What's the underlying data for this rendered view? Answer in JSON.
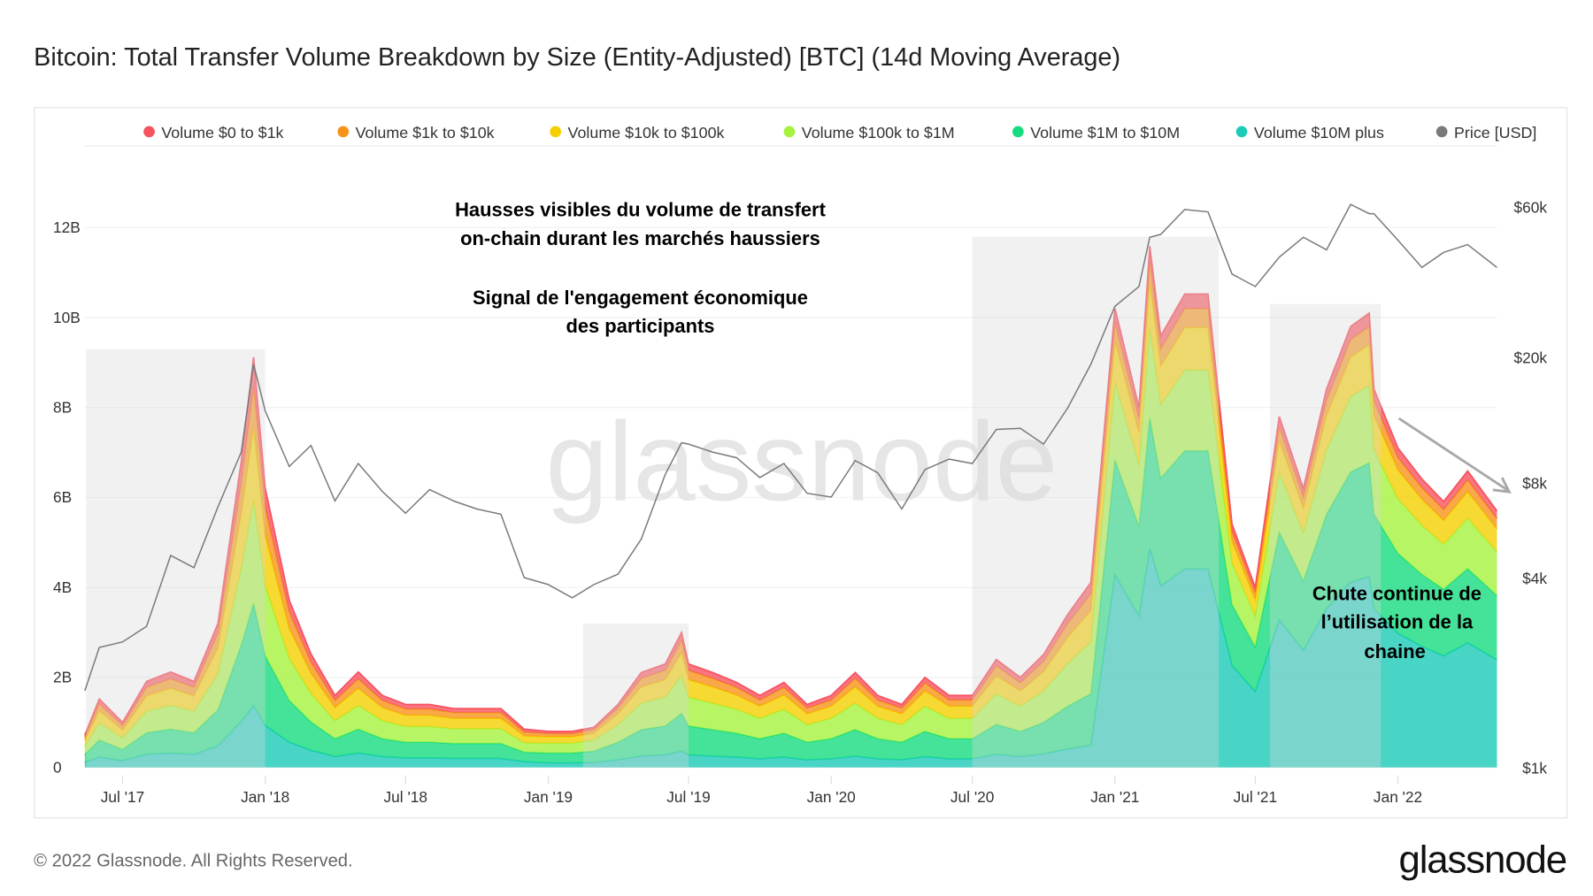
{
  "title": "Bitcoin: Total Transfer Volume Breakdown by Size (Entity-Adjusted) [BTC] (14d Moving Average)",
  "footer": {
    "copyright": "© 2022 Glassnode. All Rights Reserved.",
    "logo": "glassnode"
  },
  "watermark": "glassnode",
  "annotations": {
    "top_line1": "Hausses visibles du volume de transfert",
    "top_line2": "on-chain durant les marchés haussiers",
    "top_line3": "Signal de l'engagement économique",
    "top_line4": "des participants",
    "right_line1": "Chute continue de",
    "right_line2": "l’utilisation de la",
    "right_line3": "chaine"
  },
  "colors": {
    "v0_1k": "#f7525f",
    "v1k_10k": "#f7931a",
    "v10k_100k": "#f5cf00",
    "v100k_1m": "#a6f23f",
    "v1m_10m": "#16dc80",
    "v10m_plus": "#1ccbb8",
    "price": "#7a7a7a"
  },
  "chart_data": {
    "type": "area",
    "stacked": true,
    "title": "Bitcoin: Total Transfer Volume Breakdown by Size (Entity-Adjusted) [BTC] (14d Moving Average)",
    "legend_position": "top",
    "legend": [
      "Volume $0 to $1k",
      "Volume $1k to $10k",
      "Volume $10k to $100k",
      "Volume $100k to $1M",
      "Volume $1M to $10M",
      "Volume $10M plus",
      "Price [USD]"
    ],
    "x_ticks": [
      "Jul '17",
      "Jan '18",
      "Jul '18",
      "Jan '19",
      "Jul '19",
      "Jan '20",
      "Jul '20",
      "Jan '21",
      "Jul '21",
      "Jan '22"
    ],
    "y_ticks": [
      "0",
      "2B",
      "4B",
      "6B",
      "8B",
      "10B",
      "12B"
    ],
    "y2_ticks": [
      "$1k",
      "$4k",
      "$8k",
      "$20k",
      "$60k"
    ],
    "ylim": [
      0,
      12000000000
    ],
    "y2_scale": "log",
    "y2lim": [
      1000,
      60000
    ],
    "x": [
      "2017-05-15",
      "2017-06-01",
      "2017-07-01",
      "2017-08-01",
      "2017-09-01",
      "2017-10-01",
      "2017-11-01",
      "2017-12-01",
      "2017-12-17",
      "2018-01-01",
      "2018-02-01",
      "2018-03-01",
      "2018-04-01",
      "2018-05-01",
      "2018-06-01",
      "2018-07-01",
      "2018-08-01",
      "2018-09-01",
      "2018-10-01",
      "2018-11-01",
      "2018-12-01",
      "2019-01-01",
      "2019-02-01",
      "2019-03-01",
      "2019-04-01",
      "2019-05-01",
      "2019-06-01",
      "2019-06-22",
      "2019-07-01",
      "2019-08-01",
      "2019-09-01",
      "2019-10-01",
      "2019-11-01",
      "2019-12-01",
      "2020-01-01",
      "2020-02-01",
      "2020-03-01",
      "2020-04-01",
      "2020-05-01",
      "2020-06-01",
      "2020-07-01",
      "2020-08-01",
      "2020-09-01",
      "2020-10-01",
      "2020-11-01",
      "2020-12-01",
      "2021-01-01",
      "2021-02-01",
      "2021-02-15",
      "2021-03-01",
      "2021-04-01",
      "2021-05-01",
      "2021-06-01",
      "2021-07-01",
      "2021-08-01",
      "2021-09-01",
      "2021-10-01",
      "2021-11-01",
      "2021-11-25",
      "2021-12-01",
      "2022-01-01",
      "2022-02-01",
      "2022-03-01",
      "2022-04-01",
      "2022-05-01"
    ],
    "series_unit": "B",
    "series": [
      {
        "name": "Volume $10M plus",
        "values": [
          0.11,
          0.23,
          0.15,
          0.29,
          0.32,
          0.29,
          0.48,
          1.02,
          1.37,
          0.93,
          0.56,
          0.38,
          0.24,
          0.32,
          0.24,
          0.21,
          0.21,
          0.2,
          0.2,
          0.2,
          0.13,
          0.1,
          0.1,
          0.11,
          0.17,
          0.25,
          0.28,
          0.36,
          0.28,
          0.25,
          0.23,
          0.19,
          0.23,
          0.17,
          0.19,
          0.25,
          0.19,
          0.17,
          0.24,
          0.19,
          0.19,
          0.29,
          0.24,
          0.3,
          0.41,
          0.49,
          4.28,
          3.36,
          4.87,
          4.03,
          4.41,
          4.41,
          2.27,
          1.68,
          3.28,
          2.6,
          3.53,
          4.12,
          4.24,
          3.53,
          2.98,
          2.69,
          2.48,
          2.77,
          2.39
        ]
      },
      {
        "name": "Volume $1M to $10M",
        "values": [
          0.18,
          0.38,
          0.25,
          0.48,
          0.53,
          0.48,
          0.8,
          1.7,
          2.28,
          1.55,
          0.93,
          0.63,
          0.4,
          0.53,
          0.4,
          0.35,
          0.35,
          0.33,
          0.33,
          0.33,
          0.21,
          0.22,
          0.22,
          0.25,
          0.39,
          0.59,
          0.64,
          0.84,
          0.64,
          0.59,
          0.53,
          0.45,
          0.53,
          0.39,
          0.45,
          0.59,
          0.45,
          0.39,
          0.56,
          0.45,
          0.45,
          0.67,
          0.56,
          0.7,
          0.95,
          1.15,
          2.55,
          2.0,
          2.9,
          2.4,
          2.63,
          2.63,
          1.35,
          1.0,
          1.95,
          1.55,
          2.1,
          2.45,
          2.53,
          2.1,
          1.78,
          1.6,
          1.48,
          1.65,
          1.43
        ]
      },
      {
        "name": "Volume $100k to $1M",
        "values": [
          0.18,
          0.38,
          0.25,
          0.48,
          0.53,
          0.48,
          0.8,
          1.7,
          2.28,
          1.55,
          0.93,
          0.63,
          0.4,
          0.53,
          0.4,
          0.35,
          0.35,
          0.33,
          0.33,
          0.33,
          0.21,
          0.22,
          0.22,
          0.25,
          0.39,
          0.59,
          0.64,
          0.84,
          0.64,
          0.59,
          0.53,
          0.45,
          0.53,
          0.39,
          0.45,
          0.59,
          0.45,
          0.39,
          0.56,
          0.45,
          0.45,
          0.67,
          0.56,
          0.7,
          0.95,
          1.15,
          1.73,
          1.36,
          1.97,
          1.63,
          1.79,
          1.79,
          0.92,
          0.68,
          1.33,
          1.05,
          1.43,
          1.67,
          1.72,
          1.43,
          1.21,
          1.09,
          1.0,
          1.12,
          0.97
        ]
      },
      {
        "name": "Volume $10k to $100k",
        "values": [
          0.13,
          0.27,
          0.18,
          0.34,
          0.38,
          0.34,
          0.58,
          1.22,
          1.64,
          1.12,
          0.67,
          0.45,
          0.29,
          0.38,
          0.29,
          0.25,
          0.25,
          0.23,
          0.23,
          0.23,
          0.15,
          0.14,
          0.14,
          0.15,
          0.24,
          0.36,
          0.39,
          0.51,
          0.39,
          0.36,
          0.32,
          0.27,
          0.32,
          0.24,
          0.27,
          0.36,
          0.27,
          0.24,
          0.34,
          0.27,
          0.27,
          0.41,
          0.34,
          0.43,
          0.58,
          0.7,
          0.92,
          0.72,
          1.04,
          0.86,
          0.95,
          0.95,
          0.49,
          0.36,
          0.7,
          0.56,
          0.76,
          0.88,
          0.91,
          0.76,
          0.64,
          0.58,
          0.53,
          0.59,
          0.51
        ]
      },
      {
        "name": "Volume $1k to $10k",
        "values": [
          0.07,
          0.15,
          0.1,
          0.19,
          0.21,
          0.19,
          0.32,
          0.68,
          0.91,
          0.62,
          0.37,
          0.25,
          0.16,
          0.21,
          0.16,
          0.14,
          0.14,
          0.13,
          0.13,
          0.13,
          0.09,
          0.07,
          0.07,
          0.08,
          0.13,
          0.19,
          0.21,
          0.27,
          0.21,
          0.19,
          0.17,
          0.14,
          0.17,
          0.13,
          0.14,
          0.19,
          0.14,
          0.13,
          0.18,
          0.14,
          0.14,
          0.22,
          0.18,
          0.23,
          0.31,
          0.37,
          0.41,
          0.32,
          0.46,
          0.38,
          0.42,
          0.42,
          0.22,
          0.16,
          0.31,
          0.25,
          0.34,
          0.39,
          0.4,
          0.34,
          0.28,
          0.26,
          0.24,
          0.26,
          0.23
        ]
      },
      {
        "name": "Volume $0 to $1k",
        "values": [
          0.05,
          0.11,
          0.07,
          0.13,
          0.15,
          0.13,
          0.22,
          0.48,
          0.64,
          0.43,
          0.26,
          0.18,
          0.11,
          0.15,
          0.11,
          0.1,
          0.1,
          0.09,
          0.09,
          0.09,
          0.06,
          0.05,
          0.05,
          0.05,
          0.08,
          0.13,
          0.14,
          0.18,
          0.14,
          0.13,
          0.11,
          0.1,
          0.11,
          0.08,
          0.1,
          0.13,
          0.1,
          0.08,
          0.12,
          0.1,
          0.1,
          0.14,
          0.12,
          0.15,
          0.2,
          0.25,
          0.31,
          0.24,
          0.35,
          0.29,
          0.32,
          0.32,
          0.16,
          0.12,
          0.23,
          0.19,
          0.25,
          0.29,
          0.3,
          0.25,
          0.21,
          0.19,
          0.18,
          0.2,
          0.17
        ]
      }
    ],
    "price": {
      "name": "Price [USD]",
      "values": [
        1750,
        2400,
        2500,
        2800,
        4700,
        4300,
        6700,
        10000,
        19000,
        13500,
        9000,
        10500,
        7000,
        9200,
        7500,
        6400,
        7600,
        7000,
        6600,
        6350,
        4000,
        3800,
        3450,
        3800,
        4100,
        5300,
        8500,
        10700,
        10600,
        10000,
        9600,
        8300,
        9200,
        7400,
        7200,
        9400,
        8600,
        6600,
        8800,
        9500,
        9200,
        11800,
        11900,
        10600,
        13800,
        19000,
        29000,
        33500,
        48000,
        49000,
        58800,
        57800,
        36700,
        33500,
        41500,
        48000,
        43800,
        61000,
        57000,
        57000,
        47000,
        38500,
        43000,
        45500,
        38500
      ]
    },
    "highlighted_periods": [
      {
        "start": "2017-05-15",
        "end": "2018-01-01",
        "level_B": 9.3
      },
      {
        "start": "2019-02-15",
        "end": "2019-07-01",
        "level_B": 3.2
      },
      {
        "start": "2020-07-01",
        "end": "2021-05-15",
        "level_B": 11.8
      },
      {
        "start": "2021-07-20",
        "end": "2021-12-10",
        "level_B": 10.3
      }
    ],
    "grid": true
  }
}
